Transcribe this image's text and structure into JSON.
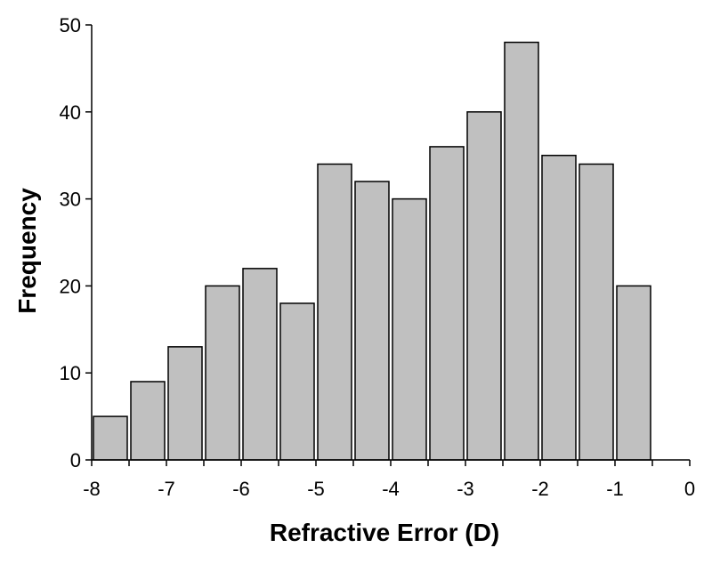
{
  "chart_data": {
    "type": "bar",
    "title": "",
    "xlabel": "Refractive Error (D)",
    "ylabel": "Frequency",
    "xlim": [
      -8,
      0
    ],
    "ylim": [
      0,
      50
    ],
    "x_ticks": [
      -8,
      -7,
      -6,
      -5,
      -4,
      -3,
      -2,
      -1,
      0
    ],
    "x_tick_labels": [
      "-8",
      "-7",
      "-6",
      "-5",
      "-4",
      "-3",
      "-2",
      "-1",
      "0"
    ],
    "y_ticks": [
      0,
      10,
      20,
      30,
      40,
      50
    ],
    "y_tick_labels": [
      "0",
      "10",
      "20",
      "30",
      "40",
      "50"
    ],
    "bin_width": 0.5,
    "bins": [
      {
        "start": -8.0,
        "end": -7.5,
        "value": 5
      },
      {
        "start": -7.5,
        "end": -7.0,
        "value": 9
      },
      {
        "start": -7.0,
        "end": -6.5,
        "value": 13
      },
      {
        "start": -6.5,
        "end": -6.0,
        "value": 20
      },
      {
        "start": -6.0,
        "end": -5.5,
        "value": 22
      },
      {
        "start": -5.5,
        "end": -5.0,
        "value": 18
      },
      {
        "start": -5.0,
        "end": -4.5,
        "value": 34
      },
      {
        "start": -4.5,
        "end": -4.0,
        "value": 32
      },
      {
        "start": -4.0,
        "end": -3.5,
        "value": 30
      },
      {
        "start": -3.5,
        "end": -3.0,
        "value": 36
      },
      {
        "start": -3.0,
        "end": -2.5,
        "value": 40
      },
      {
        "start": -2.5,
        "end": -2.0,
        "value": 48
      },
      {
        "start": -2.0,
        "end": -1.5,
        "value": 35
      },
      {
        "start": -1.5,
        "end": -1.0,
        "value": 34
      },
      {
        "start": -1.0,
        "end": -0.5,
        "value": 20
      }
    ],
    "grid": false,
    "legend": "none",
    "colors": {
      "bar_fill": "#c0c0c0",
      "bar_stroke": "#000000",
      "axis": "#000000"
    }
  }
}
